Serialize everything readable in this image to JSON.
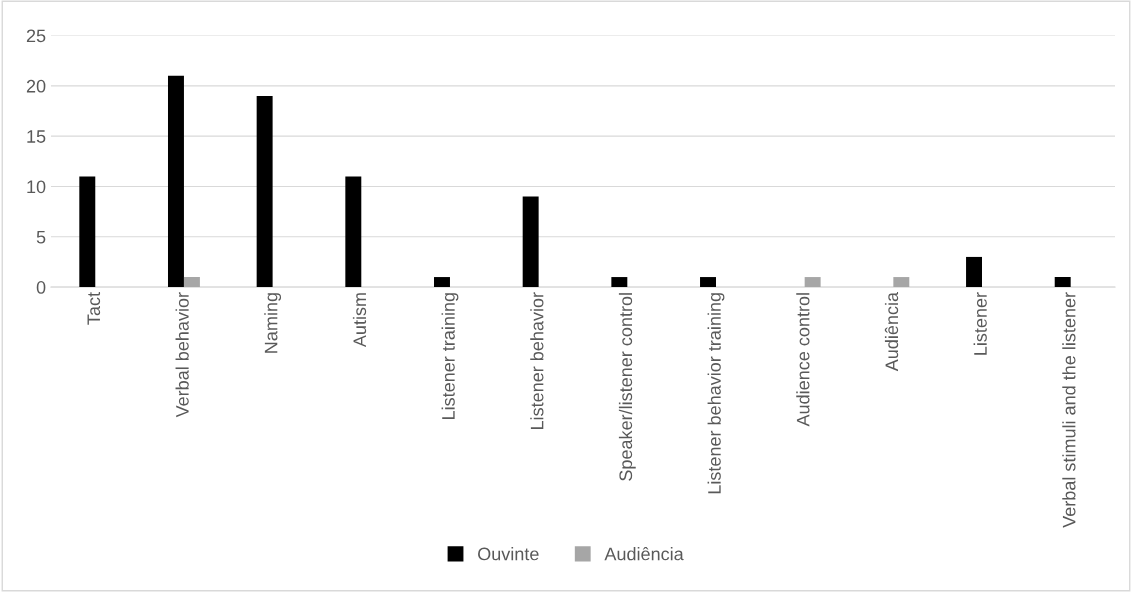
{
  "chart_data": {
    "type": "bar",
    "categories": [
      "Tact",
      "Verbal behavior",
      "Naming",
      "Autism",
      "Listener training",
      "Listener behavior",
      "Speaker/listener control",
      "Listener behavior training",
      "Audience control",
      "Audiência",
      "Listener",
      "Verbal stimuli and the listener"
    ],
    "series": [
      {
        "name": "Ouvinte",
        "color": "#000000",
        "values": [
          11,
          21,
          19,
          11,
          1,
          9,
          1,
          1,
          0,
          0,
          3,
          1
        ]
      },
      {
        "name": "Audiência",
        "color": "#a6a6a6",
        "values": [
          0,
          1,
          0,
          0,
          0,
          0,
          0,
          0,
          1,
          1,
          0,
          0
        ]
      }
    ],
    "ylim": [
      0,
      25
    ],
    "yticks": [
      0,
      5,
      10,
      15,
      20,
      25
    ],
    "grid": "y",
    "legend": "bottom"
  }
}
